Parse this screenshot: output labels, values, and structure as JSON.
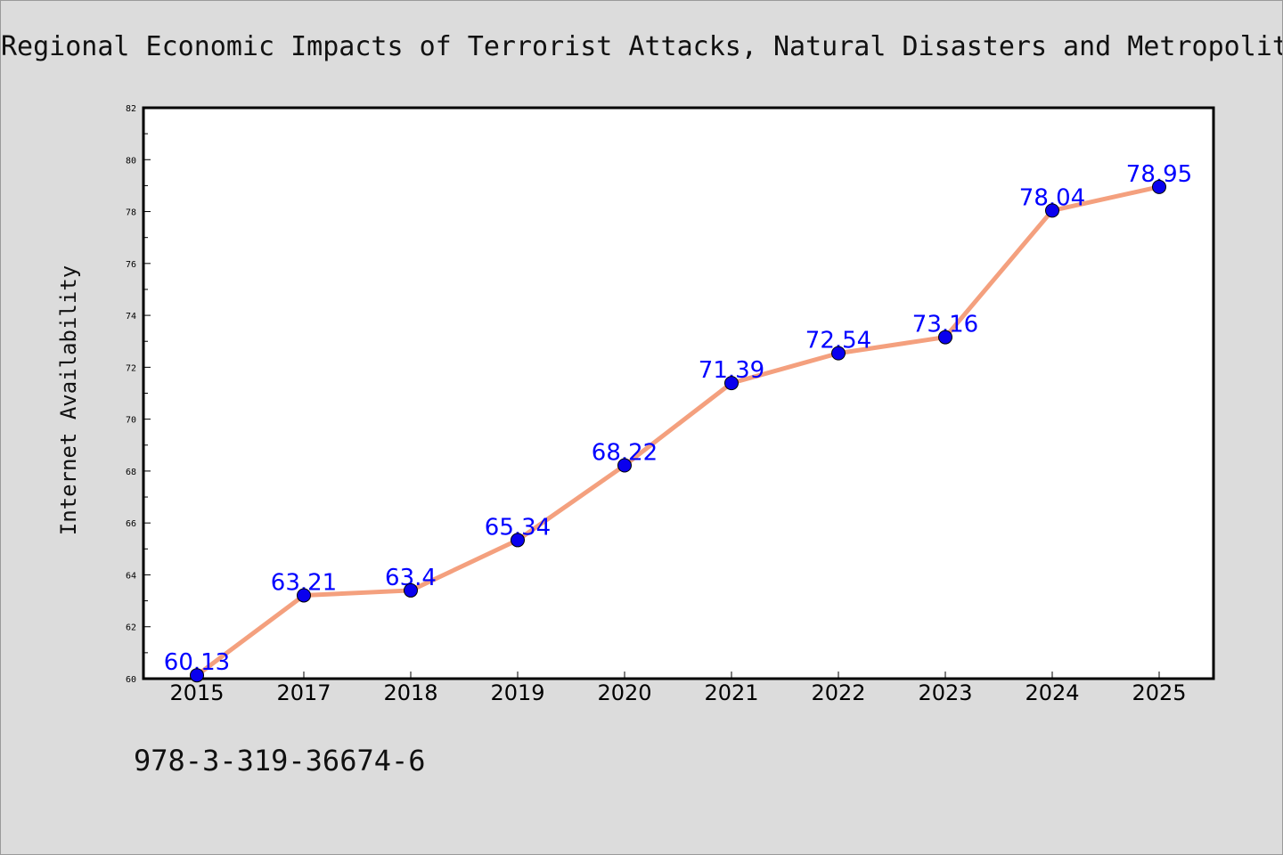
{
  "chart_data": {
    "type": "line",
    "title": "Regional Economic Impacts of Terrorist Attacks, Natural Disasters and Metropolit",
    "ylabel": "Internet Availability",
    "xlabel": "",
    "categories": [
      "2015",
      "2017",
      "2018",
      "2019",
      "2020",
      "2021",
      "2022",
      "2023",
      "2024",
      "2025"
    ],
    "series": [
      {
        "values": [
          60.13,
          63.21,
          63.4,
          65.34,
          68.22,
          71.39,
          72.54,
          73.16,
          78.04,
          78.95
        ]
      }
    ],
    "data_labels": [
      "60.13",
      "63.21",
      "63.4",
      "65.34",
      "68.22",
      "71.39",
      "72.54",
      "73.16",
      "78.04",
      "78.95"
    ],
    "ylim": [
      60,
      82
    ],
    "yticks": [
      "60",
      "62",
      "64",
      "66",
      "68",
      "70",
      "72",
      "74",
      "76",
      "78",
      "80",
      "82"
    ],
    "grid": false,
    "line_color": "#f4a07e",
    "marker_color": "#0a00ee",
    "label_color": "#0000ff"
  },
  "footer": {
    "isbn": "978-3-319-36674-6"
  }
}
